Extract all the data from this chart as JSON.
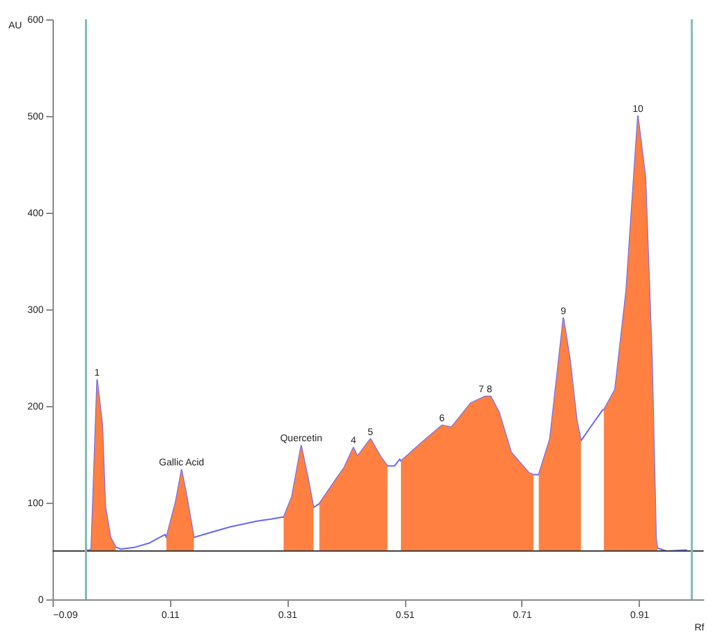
{
  "chart_data": {
    "type": "line",
    "xlabel": "Rf",
    "ylabel": "AU",
    "xlim": [
      -0.09,
      1.02
    ],
    "ylim": [
      0,
      600
    ],
    "xticks": [
      -0.09,
      0.11,
      0.31,
      0.51,
      0.71,
      0.91
    ],
    "yticks": [
      0,
      100,
      200,
      300,
      400,
      500,
      600
    ],
    "grid": false,
    "marker": "none",
    "line_style": "solid",
    "series": [
      {
        "color": "#6464ff",
        "x": [
          -0.033,
          -0.031,
          -0.024,
          -0.014,
          -0.005,
          0.0,
          0.009,
          0.018,
          0.027,
          0.051,
          0.074,
          0.102,
          0.104,
          0.12,
          0.13,
          0.139,
          0.151,
          0.167,
          0.213,
          0.26,
          0.283,
          0.301,
          0.304,
          0.318,
          0.334,
          0.346,
          0.355,
          0.36,
          0.365,
          0.393,
          0.407,
          0.423,
          0.43,
          0.452,
          0.469,
          0.481,
          0.493,
          0.502,
          0.504,
          0.539,
          0.574,
          0.59,
          0.623,
          0.648,
          0.657,
          0.671,
          0.692,
          0.722,
          0.73,
          0.734,
          0.739,
          0.758,
          0.781,
          0.792,
          0.804,
          0.811,
          0.827,
          0.848,
          0.85,
          0.869,
          0.888,
          0.908,
          0.921,
          0.932,
          0.939,
          0.941,
          0.957,
          0.992
        ],
        "values": [
          54,
          50,
          52,
          227,
          180,
          96,
          64,
          54,
          52,
          54,
          58,
          67,
          64,
          101,
          134,
          106,
          64,
          67,
          75,
          81,
          83,
          85,
          85,
          106,
          159,
          124,
          95,
          97,
          99,
          124,
          136,
          157,
          148,
          166,
          148,
          138,
          138,
          145,
          143,
          162,
          180,
          178,
          203,
          210,
          210,
          194,
          152,
          131,
          129,
          129,
          129,
          166,
          291,
          249,
          185,
          164,
          178,
          196,
          196,
          217,
          319,
          500,
          436,
          249,
          64,
          53,
          50,
          51
        ]
      },
      {
        "type": "area",
        "color": "#ff8040",
        "x": [
          -0.031,
          -0.024,
          -0.014,
          -0.005,
          0.0,
          0.009,
          0.018
        ],
        "values": [
          50,
          52,
          227,
          180,
          96,
          64,
          54
        ]
      },
      {
        "type": "area",
        "color": "#ff8040",
        "x": [
          0.104,
          0.12,
          0.13,
          0.139,
          0.151
        ],
        "values": [
          64,
          101,
          134,
          106,
          64
        ]
      },
      {
        "type": "area",
        "color": "#ff8040",
        "x": [
          0.304,
          0.318,
          0.334,
          0.346,
          0.355
        ],
        "values": [
          85,
          106,
          159,
          124,
          95
        ]
      },
      {
        "type": "area",
        "color": "#ff8040",
        "x": [
          0.365,
          0.393,
          0.407,
          0.423,
          0.43,
          0.452,
          0.469,
          0.481
        ],
        "values": [
          99,
          124,
          136,
          157,
          148,
          166,
          148,
          138
        ]
      },
      {
        "type": "area",
        "color": "#ff8040",
        "x": [
          0.504,
          0.539,
          0.574,
          0.59,
          0.623,
          0.648,
          0.657,
          0.671,
          0.692,
          0.722,
          0.73
        ],
        "values": [
          143,
          162,
          180,
          178,
          203,
          210,
          210,
          194,
          152,
          131,
          129
        ]
      },
      {
        "type": "area",
        "color": "#ff8040",
        "x": [
          0.739,
          0.758,
          0.781,
          0.792,
          0.804,
          0.811
        ],
        "values": [
          129,
          166,
          291,
          249,
          185,
          164
        ]
      },
      {
        "type": "area",
        "color": "#ff8040",
        "x": [
          0.85,
          0.869,
          0.888,
          0.908,
          0.921,
          0.932,
          0.939,
          0.941
        ],
        "values": [
          196,
          217,
          319,
          500,
          436,
          249,
          64,
          53
        ]
      }
    ],
    "ref_lines": [
      {
        "axis": "y",
        "value": 50,
        "color": "#404040"
      },
      {
        "axis": "x",
        "value": -0.033,
        "color": "#7fb8b8"
      },
      {
        "axis": "x",
        "value": 1.0,
        "color": "#7fb8b8"
      }
    ],
    "annotations": [
      {
        "text": "1",
        "x": -0.014,
        "y": 227
      },
      {
        "text": "Gallic Acid",
        "x": 0.13,
        "y": 134
      },
      {
        "text": "Quercetin",
        "x": 0.334,
        "y": 159
      },
      {
        "text": "4",
        "x": 0.423,
        "y": 157
      },
      {
        "text": "5",
        "x": 0.452,
        "y": 166
      },
      {
        "text": "6",
        "x": 0.574,
        "y": 180
      },
      {
        "text": "7 8",
        "x": 0.648,
        "y": 210
      },
      {
        "text": "9",
        "x": 0.781,
        "y": 291
      },
      {
        "text": "10",
        "x": 0.908,
        "y": 500
      }
    ]
  }
}
